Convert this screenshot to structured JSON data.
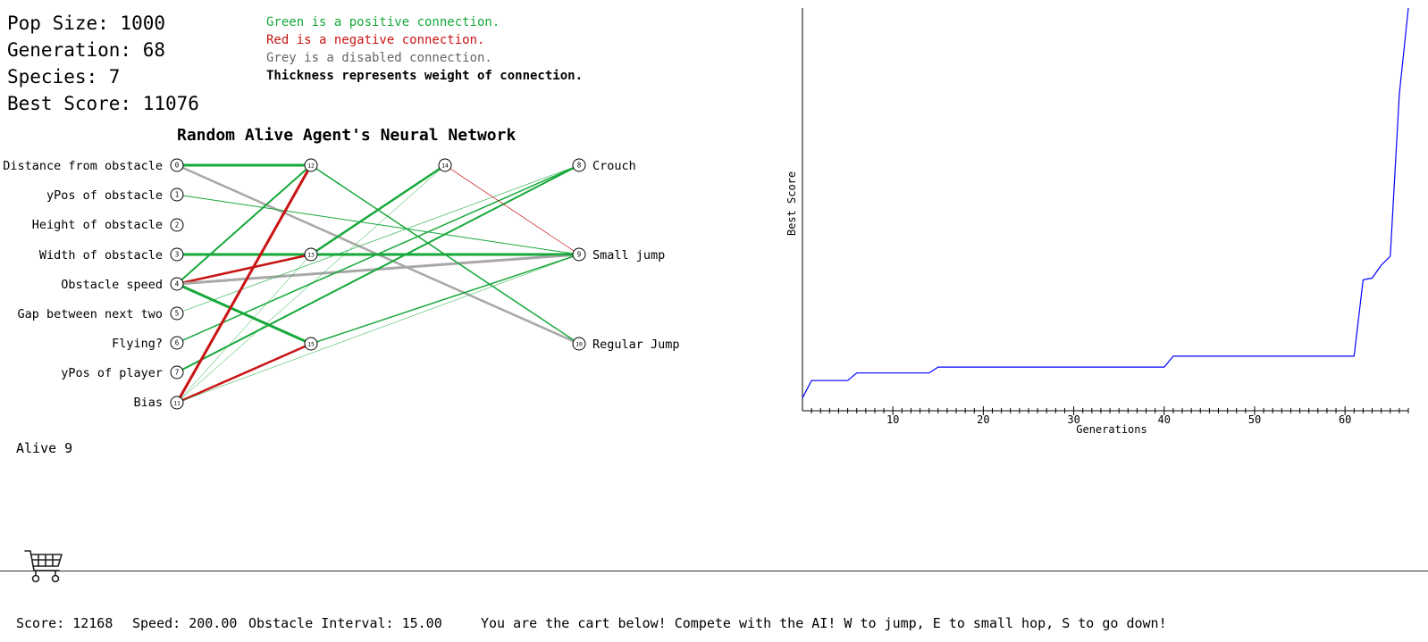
{
  "stats": {
    "pop_size": "Pop Size: 1000",
    "generation": "Generation: 68",
    "species": "Species: 7",
    "best_score": "Best Score: 11076"
  },
  "legend": {
    "green": "Green is a positive connection.",
    "red": "Red is a negative connection.",
    "grey": "Grey is a disabled connection.",
    "thickness": "Thickness represents weight of connection."
  },
  "colors": {
    "positive": "#16a83a",
    "negative": "#c81414",
    "disabled": "#a8a8a8",
    "graph_line": "#0000ff"
  },
  "network": {
    "title": "Random Alive Agent's Neural Network",
    "inputs": [
      {
        "id": "0",
        "label": "Distance from obstacle"
      },
      {
        "id": "1",
        "label": "yPos of obstacle"
      },
      {
        "id": "2",
        "label": "Height of obstacle"
      },
      {
        "id": "3",
        "label": "Width of obstacle"
      },
      {
        "id": "4",
        "label": "Obstacle speed"
      },
      {
        "id": "5",
        "label": "Gap between next two"
      },
      {
        "id": "6",
        "label": "Flying?"
      },
      {
        "id": "7",
        "label": "yPos of player"
      },
      {
        "id": "11",
        "label": "Bias"
      }
    ],
    "hidden": [
      {
        "id": "12"
      },
      {
        "id": "13"
      },
      {
        "id": "15"
      },
      {
        "id": "14"
      }
    ],
    "outputs": [
      {
        "id": "8",
        "label": "Crouch"
      },
      {
        "id": "9",
        "label": "Small jump"
      },
      {
        "id": "10",
        "label": "Regular Jump"
      }
    ],
    "connections": [
      {
        "from": "0",
        "to": "12",
        "type": "positive",
        "weight": 3
      },
      {
        "from": "0",
        "to": "10",
        "type": "disabled",
        "weight": 2.5
      },
      {
        "from": "1",
        "to": "9",
        "type": "positive",
        "weight": 1
      },
      {
        "from": "3",
        "to": "13",
        "type": "positive",
        "weight": 3
      },
      {
        "from": "3",
        "to": "9",
        "type": "positive",
        "weight": 3
      },
      {
        "from": "4",
        "to": "12",
        "type": "positive",
        "weight": 2
      },
      {
        "from": "4",
        "to": "13",
        "type": "negative",
        "weight": 2.5
      },
      {
        "from": "4",
        "to": "15",
        "type": "positive",
        "weight": 3
      },
      {
        "from": "4",
        "to": "9",
        "type": "disabled",
        "weight": 3
      },
      {
        "from": "5",
        "to": "8",
        "type": "positive",
        "weight": 0.6
      },
      {
        "from": "6",
        "to": "8",
        "type": "positive",
        "weight": 1.5
      },
      {
        "from": "7",
        "to": "8",
        "type": "positive",
        "weight": 2
      },
      {
        "from": "11",
        "to": "12",
        "type": "negative",
        "weight": 3
      },
      {
        "from": "11",
        "to": "15",
        "type": "negative",
        "weight": 2.5
      },
      {
        "from": "11",
        "to": "14",
        "type": "positive",
        "weight": 0.5
      },
      {
        "from": "11",
        "to": "9",
        "type": "positive",
        "weight": 0.5
      },
      {
        "from": "11",
        "to": "13",
        "type": "positive",
        "weight": 0.5
      },
      {
        "from": "12",
        "to": "10",
        "type": "positive",
        "weight": 1.5
      },
      {
        "from": "13",
        "to": "14",
        "type": "positive",
        "weight": 2.5
      },
      {
        "from": "13",
        "to": "9",
        "type": "positive",
        "weight": 2.5
      },
      {
        "from": "15",
        "to": "9",
        "type": "positive",
        "weight": 1.5
      },
      {
        "from": "14",
        "to": "9",
        "type": "negative",
        "weight": 0.7
      }
    ]
  },
  "alive": "Alive 9",
  "chart_data": {
    "type": "line",
    "title": "",
    "xlabel": "Generations",
    "ylabel": "Best Score",
    "x_tick_labels": [
      "10",
      "20",
      "30",
      "40",
      "50",
      "60"
    ],
    "xlim": [
      0,
      67
    ],
    "ylim": [
      0,
      11076
    ],
    "grid": false,
    "series": [
      {
        "x": [
          0,
          1,
          2,
          3,
          4,
          5,
          6,
          7,
          8,
          9,
          10,
          11,
          12,
          13,
          14,
          15,
          16,
          17,
          18,
          19,
          20,
          21,
          22,
          23,
          24,
          25,
          26,
          27,
          28,
          29,
          30,
          31,
          32,
          33,
          34,
          35,
          36,
          37,
          38,
          39,
          40,
          41,
          42,
          43,
          44,
          45,
          46,
          47,
          48,
          49,
          50,
          51,
          52,
          53,
          54,
          55,
          56,
          57,
          58,
          59,
          60,
          61,
          62,
          63,
          64,
          65,
          66,
          67
        ],
        "values": [
          350,
          830,
          830,
          830,
          830,
          830,
          1040,
          1040,
          1040,
          1040,
          1040,
          1040,
          1040,
          1040,
          1040,
          1200,
          1200,
          1200,
          1200,
          1200,
          1200,
          1200,
          1200,
          1200,
          1200,
          1200,
          1200,
          1200,
          1200,
          1200,
          1200,
          1200,
          1200,
          1200,
          1200,
          1200,
          1200,
          1200,
          1200,
          1200,
          1200,
          1500,
          1500,
          1500,
          1500,
          1500,
          1500,
          1500,
          1500,
          1500,
          1500,
          1500,
          1500,
          1500,
          1500,
          1500,
          1500,
          1500,
          1500,
          1500,
          1500,
          1500,
          3600,
          3650,
          4000,
          4250,
          8700,
          11076
        ]
      }
    ]
  },
  "game": {
    "cart_icon": "shopping-cart-icon",
    "score": "Score: 12168",
    "speed": "Speed: 200.00",
    "obstacle_interval": "Obstacle Interval: 15.00",
    "instructions": "You are the cart below! Compete with the AI! W to jump, E to small hop, S to go down!"
  }
}
